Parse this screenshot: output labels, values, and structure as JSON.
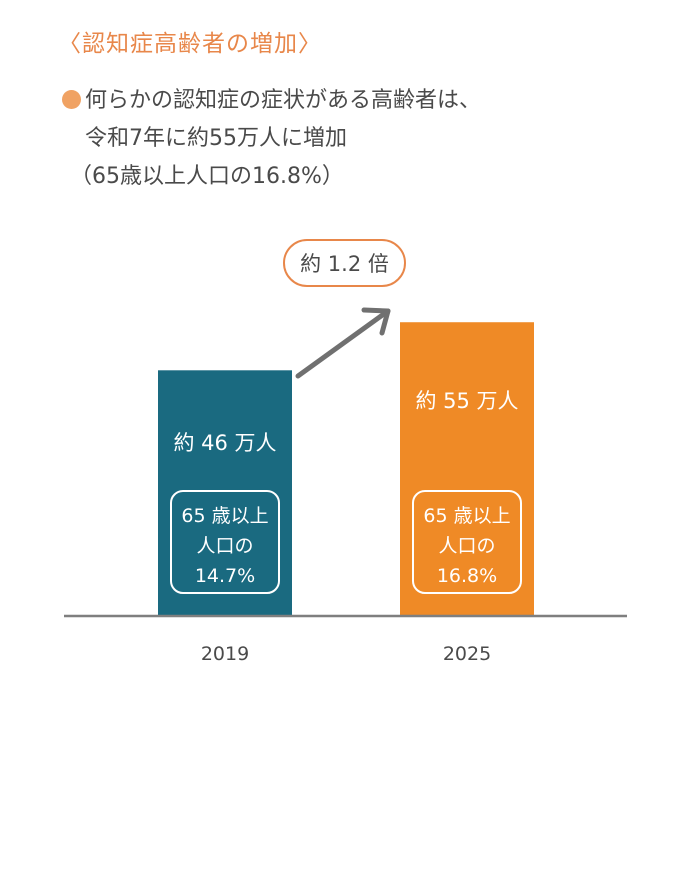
{
  "heading": "〈認知症高齢者の増加〉",
  "bullet": {
    "line1": "何らかの認知症の症状がある高齢者は、",
    "line2": "令和7年に約55万人に増加",
    "line3": "（65歳以上人口の16.8%）"
  },
  "callout": "約 1.2 倍",
  "colors": {
    "accent": "#e8874a",
    "bar_2019": "#1a6a80",
    "bar_2025": "#ef8a26",
    "arrow": "#707070",
    "axis": "#7f7f7f"
  },
  "chart_data": {
    "type": "bar",
    "categories": [
      "2019",
      "2025"
    ],
    "values": [
      46,
      55
    ],
    "unit": "万人",
    "ylim": [
      0,
      58.6
    ],
    "grid": false,
    "value_labels": [
      "約 46 万人",
      "約 55 万人"
    ],
    "share_labels": [
      [
        "65 歳以上",
        "人口の",
        "14.7%"
      ],
      [
        "65 歳以上",
        "人口の",
        "16.8%"
      ]
    ],
    "share_values": [
      14.7,
      16.8
    ]
  }
}
